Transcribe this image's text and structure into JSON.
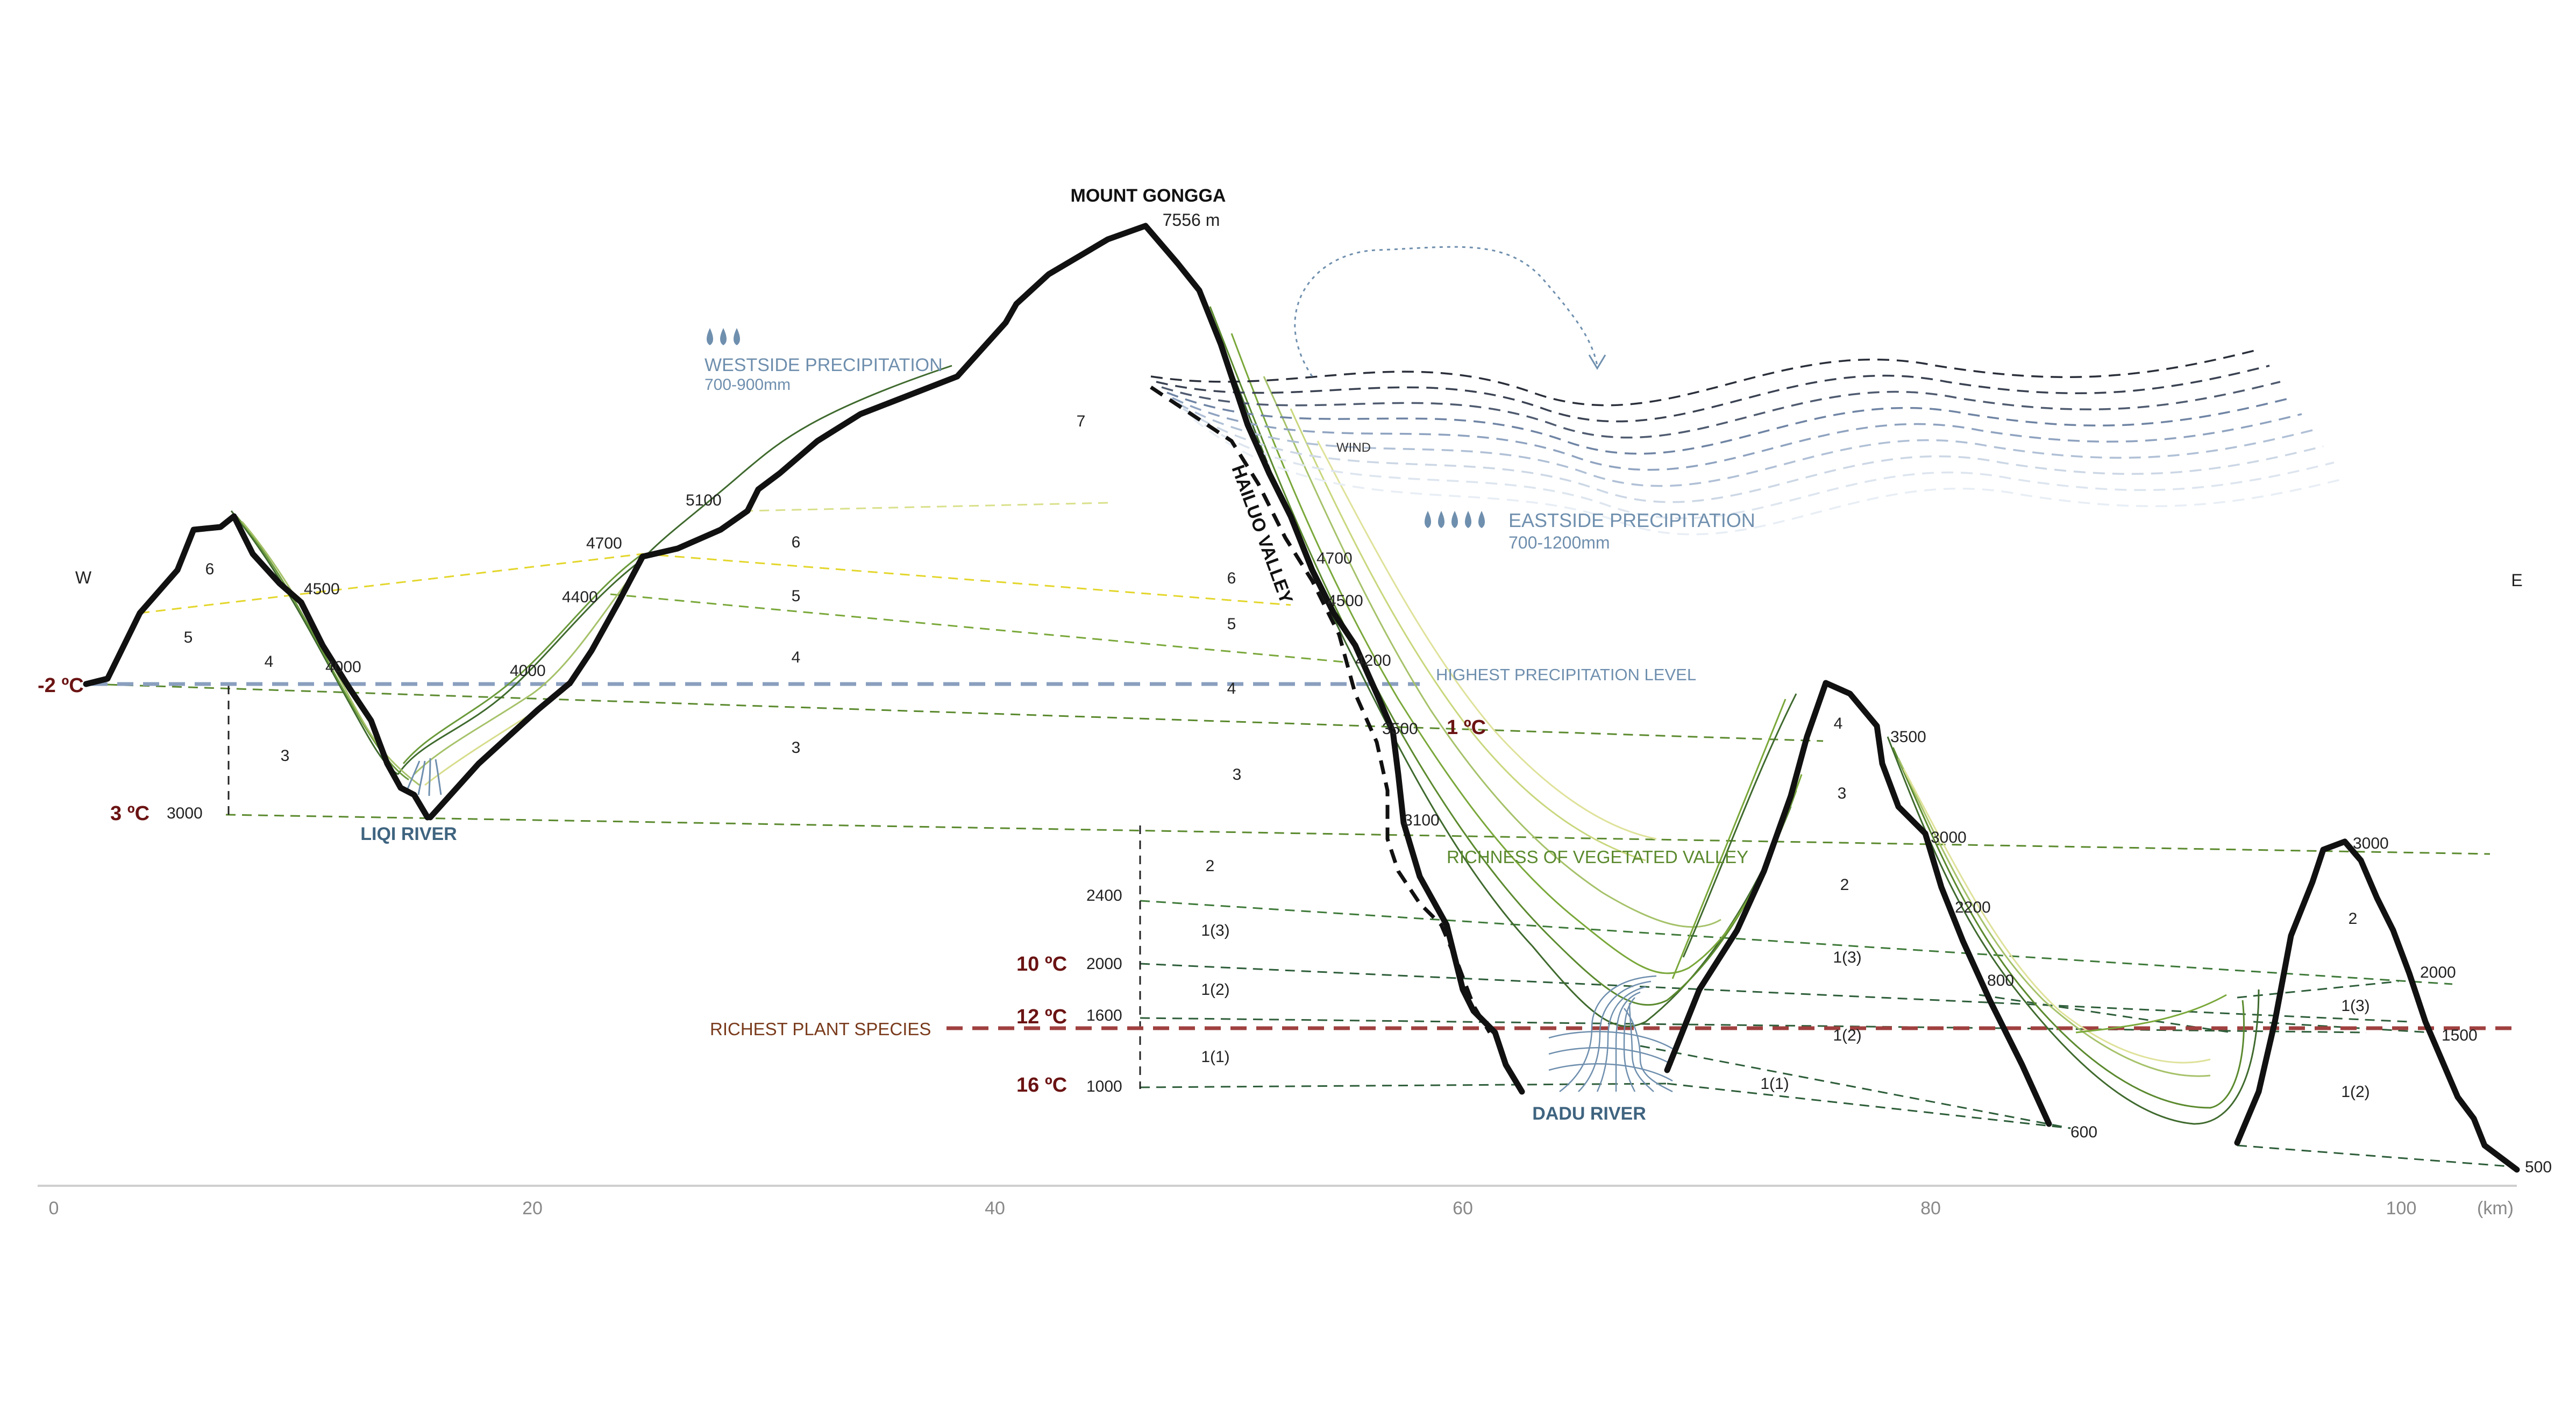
{
  "peak": {
    "name": "MOUNT GONGGA",
    "elev": "7556 m"
  },
  "directions": {
    "west": "W",
    "east": "E"
  },
  "precip": {
    "west_title": "WESTSIDE PRECIPITATION",
    "west_range": "700-900mm",
    "east_title": "EASTSIDE PRECIPITATION",
    "east_range": "700-1200mm",
    "wind": "WIND",
    "highest": "HIGHEST PRECIPITATION LEVEL"
  },
  "valley": "HAILUO VALLEY",
  "richness": "RICHNESS OF VEGETATED VALLEY",
  "richest": "RICHEST PLANT SPECIES",
  "rivers": {
    "liqi": "LIQI RIVER",
    "dadu": "DADU RIVER"
  },
  "temps": {
    "t1": "-2 ºC",
    "t2": "3 ºC",
    "t3": "1 ºC",
    "t4": "10 ºC",
    "t5": "12 ºC",
    "t6": "16 ºC"
  },
  "elevations": {
    "e3000w": "3000",
    "e4500a": "4500",
    "e4000a": "4000",
    "e4000b": "4000",
    "e4400": "4400",
    "e4700a": "4700",
    "e5100": "5100",
    "e4700b": "4700",
    "e4500b": "4500",
    "e4200": "4200",
    "e3500a": "3500",
    "e3100": "3100",
    "e2400": "2400",
    "e2000a": "2000",
    "e1600": "1600",
    "e1000": "1000",
    "e3500b": "3500",
    "e3000b": "3000",
    "e2200": "2200",
    "e800": "800",
    "e600": "600",
    "e3000c": "3000",
    "e2000b": "2000",
    "e1500": "1500",
    "e500": "500"
  },
  "zones": {
    "z7": "7",
    "z6a": "6",
    "z5a": "5",
    "z4a": "4",
    "z3a": "3",
    "z6b": "6",
    "z5b": "5",
    "z4b": "4",
    "z3b": "3",
    "z6c": "6",
    "z5c": "5",
    "z4c": "4",
    "z3c": "3",
    "z2a": "2",
    "z13a": "1(3)",
    "z12a": "1(2)",
    "z11a": "1(1)",
    "z12b": "1(2)",
    "z11b": "1(1)",
    "z4d": "4",
    "z3d": "3",
    "z2b": "2",
    "z13b": "1(3)",
    "z2c": "2",
    "z13c": "1(3)",
    "z12c": "1(2)"
  },
  "axis": {
    "t0": "0",
    "t20": "20",
    "t40": "40",
    "t60": "60",
    "t80": "80",
    "t100": "100",
    "unit": "(km)"
  },
  "colors": {
    "terrain": "#111111",
    "temp": "#6b1313",
    "precip": "#6f8fae",
    "river": "#3f6480",
    "richest": "#a04040"
  }
}
